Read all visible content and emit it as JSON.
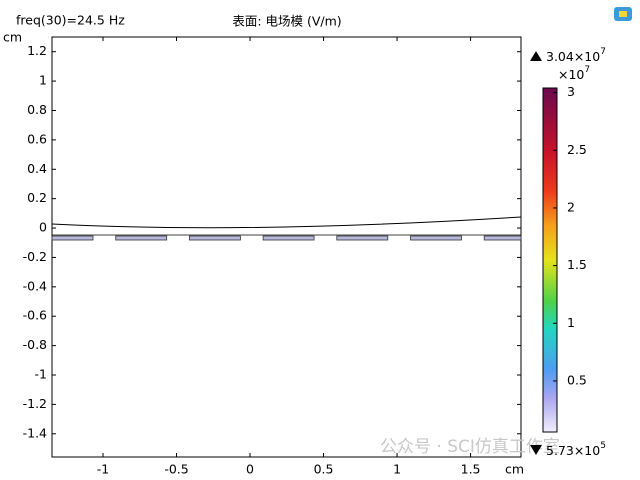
{
  "chart_data": {
    "type": "surface",
    "header_left": "freq(30)=24.5 Hz",
    "title": "表面: 电场模 (V/m)",
    "ylabel": "cm",
    "xlabel": "cm",
    "xlim": [
      -1.347,
      1.843
    ],
    "xticks": [
      -1,
      -0.5,
      0,
      0.5,
      1,
      1.5
    ],
    "ylim": [
      -1.558,
      1.3
    ],
    "yticks": [
      1.2,
      1,
      0.8,
      0.6,
      0.4,
      0.2,
      0,
      -0.2,
      -0.4,
      -0.6,
      -0.8,
      -1,
      -1.2,
      -1.4
    ],
    "colorbar": {
      "scale_base": "×10",
      "scale_exp": "7",
      "max_mantissa": "3.04×10",
      "max_exp": "7",
      "min_mantissa": "5.73×10",
      "min_exp": "5",
      "clim": [
        0.0573,
        3.04
      ],
      "ticks": [
        0.5,
        1,
        1.5,
        2,
        2.5,
        3
      ]
    },
    "watermark": "公众号 · SCI仿真工作室"
  }
}
